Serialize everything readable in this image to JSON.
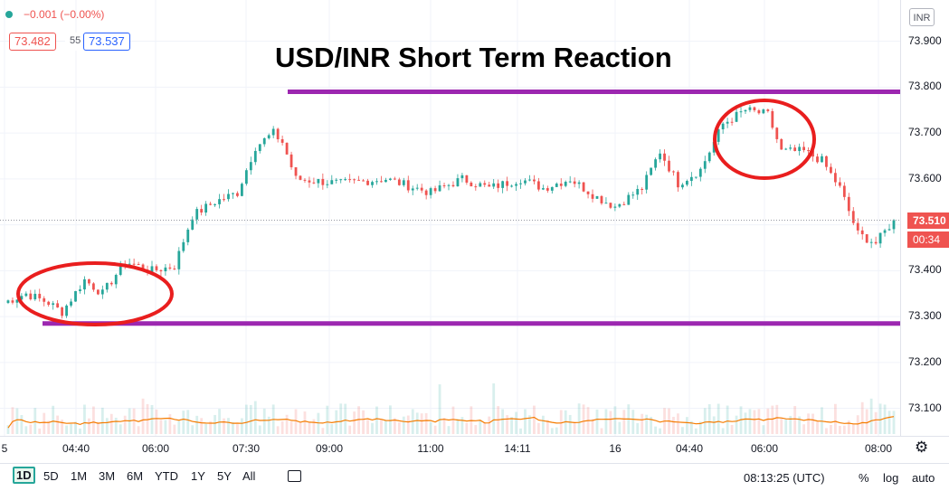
{
  "legend": {
    "change": "−0.001 (−0.00%)",
    "bid": "73.482",
    "spread": "55",
    "ask": "73.537",
    "colors": {
      "bid": "#ef5350",
      "ask": "#2962ff",
      "up": "#26a69a",
      "down": "#ef5350"
    }
  },
  "symbol_badge": "INR",
  "last_price": "73.510",
  "countdown": "00:34",
  "toolbar": {
    "ranges": [
      "1D",
      "5D",
      "1M",
      "3M",
      "6M",
      "YTD",
      "1Y",
      "5Y",
      "All"
    ],
    "active_range": "1D",
    "compare_icon": "calendar-range-icon",
    "time": "08:13:25 (UTC)",
    "percent": "%",
    "log": "log",
    "auto": "auto",
    "settings_icon": "gear-icon"
  },
  "chart_data": {
    "type": "candlestick",
    "title": "USD/INR Short Term Reaction",
    "x_ticks": [
      "5",
      "04:40",
      "06:00",
      "07:30",
      "09:00",
      "11:00",
      "14:11",
      "16",
      "04:40",
      "06:00",
      "08:00"
    ],
    "y_ticks": [
      "73.900",
      "73.800",
      "73.700",
      "73.600",
      "73.500",
      "73.400",
      "73.300",
      "73.200",
      "73.100"
    ],
    "ylim": [
      73.04,
      73.99
    ],
    "grid": true,
    "price_path": [
      [
        0,
        73.33
      ],
      [
        5,
        73.35
      ],
      [
        10,
        73.33
      ],
      [
        13,
        73.31
      ],
      [
        18,
        73.38
      ],
      [
        22,
        73.35
      ],
      [
        27,
        73.42
      ],
      [
        33,
        73.4
      ],
      [
        38,
        73.41
      ],
      [
        42,
        73.52
      ],
      [
        47,
        73.55
      ],
      [
        52,
        73.57
      ],
      [
        56,
        73.67
      ],
      [
        60,
        73.7
      ],
      [
        62,
        73.68
      ],
      [
        65,
        73.6
      ],
      [
        75,
        73.59
      ],
      [
        85,
        73.6
      ],
      [
        95,
        73.57
      ],
      [
        102,
        73.6
      ],
      [
        108,
        73.58
      ],
      [
        115,
        73.6
      ],
      [
        120,
        73.58
      ],
      [
        126,
        73.6
      ],
      [
        132,
        73.56
      ],
      [
        136,
        73.54
      ],
      [
        142,
        73.58
      ],
      [
        146,
        73.66
      ],
      [
        150,
        73.59
      ],
      [
        155,
        73.62
      ],
      [
        160,
        73.72
      ],
      [
        165,
        73.75
      ],
      [
        170,
        73.74
      ],
      [
        173,
        73.66
      ],
      [
        178,
        73.66
      ],
      [
        182,
        73.64
      ],
      [
        186,
        73.58
      ],
      [
        190,
        73.48
      ],
      [
        194,
        73.46
      ],
      [
        198,
        73.51
      ]
    ],
    "last_value": 73.51,
    "annotations": [
      {
        "type": "horizontal-line",
        "value": 73.79,
        "color": "#9c27b0"
      },
      {
        "type": "horizontal-line",
        "value": 73.285,
        "color": "#9c27b0"
      },
      {
        "type": "ellipse",
        "color": "#e91e1e"
      },
      {
        "type": "ellipse",
        "color": "#e91e1e"
      }
    ],
    "volume_ma_color": "#f57c00"
  }
}
